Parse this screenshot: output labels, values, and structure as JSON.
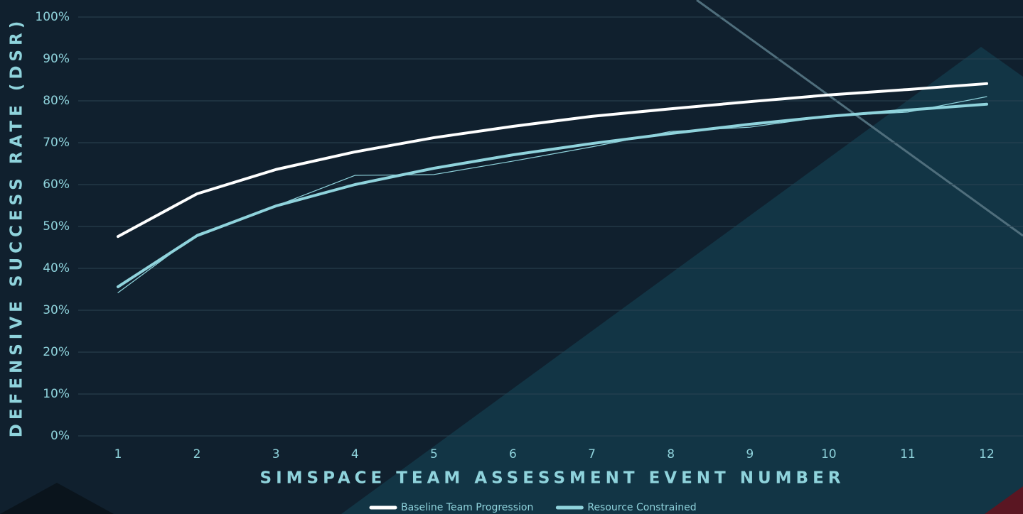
{
  "chart_data": {
    "type": "line",
    "x_label": "SIMSPACE TEAM ASSESSMENT EVENT NUMBER",
    "y_label": "DEFENSIVE SUCCESS RATE (DSR)",
    "categories": [
      "1",
      "2",
      "3",
      "4",
      "5",
      "6",
      "7",
      "8",
      "9",
      "10",
      "11",
      "12"
    ],
    "series": [
      {
        "name": "Baseline Team Progression",
        "color": "#ffffff",
        "width": 4,
        "values": [
          47.6,
          57.8,
          63.6,
          67.8,
          71.2,
          73.9,
          76.3,
          78.1,
          79.8,
          81.4,
          82.7,
          84.1
        ]
      },
      {
        "name": "Resource Constrained",
        "color": "#8fd3dc",
        "width": 4,
        "values": [
          35.6,
          47.8,
          54.9,
          60.0,
          63.9,
          67.1,
          69.8,
          72.2,
          74.4,
          76.3,
          77.8,
          79.2
        ]
      },
      {
        "color": "#8fd3dc",
        "width": 1.2,
        "values": [
          34.2,
          48.1,
          54.9,
          62.2,
          62.4,
          65.6,
          69.0,
          72.7,
          73.7,
          76.3,
          77.3,
          81.0
        ]
      }
    ],
    "ylim": [
      0,
      100
    ],
    "yticks": [
      {
        "value": 0,
        "label": "0%"
      },
      {
        "value": 10,
        "label": "10%"
      },
      {
        "value": 20,
        "label": "20%"
      },
      {
        "value": 30,
        "label": "30%"
      },
      {
        "value": 40,
        "label": "40%"
      },
      {
        "value": 50,
        "label": "50%"
      },
      {
        "value": 60,
        "label": "60%"
      },
      {
        "value": 70,
        "label": "70%"
      },
      {
        "value": 80,
        "label": "80%"
      },
      {
        "value": 90,
        "label": "90%"
      },
      {
        "value": 100,
        "label": "100%"
      }
    ],
    "grid": true,
    "legend": "bottom"
  }
}
